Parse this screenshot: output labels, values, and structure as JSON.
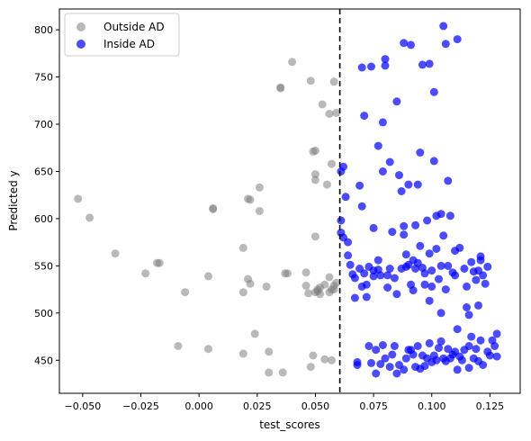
{
  "chart_data": {
    "type": "scatter",
    "xlabel": "test_scores",
    "ylabel": "Predicted y",
    "xlim": [
      -0.06,
      0.138
    ],
    "ylim": [
      415,
      822
    ],
    "xticks": [
      -0.05,
      -0.025,
      0.0,
      0.025,
      0.05,
      0.075,
      0.1,
      0.125
    ],
    "xtick_labels": [
      "−0.050",
      "−0.025",
      "0.000",
      "0.025",
      "0.050",
      "0.075",
      "0.100",
      "0.125"
    ],
    "yticks": [
      450,
      500,
      550,
      600,
      650,
      700,
      750,
      800
    ],
    "ytick_labels": [
      "450",
      "500",
      "550",
      "600",
      "650",
      "700",
      "750",
      "800"
    ],
    "threshold_line": {
      "x": 0.0605,
      "style": "dashed",
      "color": "#000000"
    },
    "legend": {
      "position": "top-left"
    },
    "series": [
      {
        "name": "Outside AD",
        "color": "#808080",
        "points": [
          [
            -0.052,
            621
          ],
          [
            -0.047,
            601
          ],
          [
            -0.036,
            563
          ],
          [
            -0.023,
            542
          ],
          [
            -0.018,
            553
          ],
          [
            -0.017,
            553
          ],
          [
            -0.009,
            465
          ],
          [
            -0.006,
            522
          ],
          [
            0.004,
            539
          ],
          [
            0.004,
            462
          ],
          [
            0.006,
            611
          ],
          [
            0.006,
            610
          ],
          [
            0.019,
            569
          ],
          [
            0.019,
            522
          ],
          [
            0.019,
            457
          ],
          [
            0.021,
            536
          ],
          [
            0.021,
            621
          ],
          [
            0.022,
            620
          ],
          [
            0.022,
            531
          ],
          [
            0.024,
            478
          ],
          [
            0.026,
            633
          ],
          [
            0.026,
            608
          ],
          [
            0.029,
            528
          ],
          [
            0.03,
            437
          ],
          [
            0.03,
            459
          ],
          [
            0.035,
            739
          ],
          [
            0.035,
            738
          ],
          [
            0.036,
            437
          ],
          [
            0.037,
            542
          ],
          [
            0.038,
            542
          ],
          [
            0.04,
            766
          ],
          [
            0.046,
            543
          ],
          [
            0.046,
            529
          ],
          [
            0.047,
            521
          ],
          [
            0.048,
            443
          ],
          [
            0.048,
            746
          ],
          [
            0.049,
            455
          ],
          [
            0.049,
            671
          ],
          [
            0.05,
            641
          ],
          [
            0.05,
            647
          ],
          [
            0.05,
            672
          ],
          [
            0.05,
            581
          ],
          [
            0.05,
            522
          ],
          [
            0.051,
            523
          ],
          [
            0.051,
            525
          ],
          [
            0.052,
            520
          ],
          [
            0.052,
            527
          ],
          [
            0.053,
            721
          ],
          [
            0.054,
            530
          ],
          [
            0.054,
            451
          ],
          [
            0.055,
            636
          ],
          [
            0.056,
            711
          ],
          [
            0.056,
            522
          ],
          [
            0.056,
            538
          ],
          [
            0.057,
            525
          ],
          [
            0.057,
            450
          ],
          [
            0.057,
            658
          ],
          [
            0.058,
            745
          ],
          [
            0.058,
            525
          ],
          [
            0.059,
            532
          ],
          [
            0.059,
            712
          ],
          [
            0.058,
            529
          ]
        ]
      },
      {
        "name": "Inside AD",
        "color": "#0000ff",
        "points": [
          [
            0.061,
            650
          ],
          [
            0.061,
            598
          ],
          [
            0.061,
            585
          ],
          [
            0.062,
            580
          ],
          [
            0.062,
            655
          ],
          [
            0.063,
            623
          ],
          [
            0.064,
            575
          ],
          [
            0.064,
            561
          ],
          [
            0.065,
            551
          ],
          [
            0.066,
            541
          ],
          [
            0.067,
            537
          ],
          [
            0.067,
            516
          ],
          [
            0.068,
            445
          ],
          [
            0.068,
            448
          ],
          [
            0.069,
            635
          ],
          [
            0.069,
            547
          ],
          [
            0.07,
            528
          ],
          [
            0.07,
            613
          ],
          [
            0.07,
            760
          ],
          [
            0.071,
            542
          ],
          [
            0.071,
            709
          ],
          [
            0.072,
            517
          ],
          [
            0.072,
            530
          ],
          [
            0.073,
            549
          ],
          [
            0.073,
            465
          ],
          [
            0.074,
            447
          ],
          [
            0.074,
            761
          ],
          [
            0.075,
            539
          ],
          [
            0.075,
            545
          ],
          [
            0.075,
            590
          ],
          [
            0.076,
            461
          ],
          [
            0.076,
            436
          ],
          [
            0.077,
            546
          ],
          [
            0.077,
            556
          ],
          [
            0.077,
            677
          ],
          [
            0.078,
            540
          ],
          [
            0.078,
            446
          ],
          [
            0.079,
            650
          ],
          [
            0.079,
            466
          ],
          [
            0.079,
            702
          ],
          [
            0.08,
            762
          ],
          [
            0.08,
            769
          ],
          [
            0.08,
            452
          ],
          [
            0.081,
            527
          ],
          [
            0.081,
            540
          ],
          [
            0.082,
            547
          ],
          [
            0.082,
            443
          ],
          [
            0.082,
            660
          ],
          [
            0.083,
            586
          ],
          [
            0.083,
            456
          ],
          [
            0.084,
            537
          ],
          [
            0.084,
            465
          ],
          [
            0.085,
            724
          ],
          [
            0.085,
            436
          ],
          [
            0.085,
            520
          ],
          [
            0.086,
            646
          ],
          [
            0.086,
            445
          ],
          [
            0.087,
            629
          ],
          [
            0.087,
            547
          ],
          [
            0.088,
            583
          ],
          [
            0.088,
            786
          ],
          [
            0.088,
            592
          ],
          [
            0.088,
            440
          ],
          [
            0.089,
            562
          ],
          [
            0.089,
            549
          ],
          [
            0.089,
            452
          ],
          [
            0.09,
            551
          ],
          [
            0.09,
            636
          ],
          [
            0.09,
            461
          ],
          [
            0.091,
            784
          ],
          [
            0.091,
            461
          ],
          [
            0.091,
            530
          ],
          [
            0.092,
            556
          ],
          [
            0.092,
            524
          ],
          [
            0.092,
            456
          ],
          [
            0.093,
            593
          ],
          [
            0.093,
            547
          ],
          [
            0.093,
            443
          ],
          [
            0.094,
            636
          ],
          [
            0.094,
            553
          ],
          [
            0.094,
            465
          ],
          [
            0.095,
            571
          ],
          [
            0.095,
            441
          ],
          [
            0.095,
            670
          ],
          [
            0.096,
            763
          ],
          [
            0.096,
            548
          ],
          [
            0.096,
            455
          ],
          [
            0.097,
            542
          ],
          [
            0.097,
            530
          ],
          [
            0.097,
            444
          ],
          [
            0.098,
            598
          ],
          [
            0.098,
            452
          ],
          [
            0.099,
            513
          ],
          [
            0.099,
            563
          ],
          [
            0.099,
            764
          ],
          [
            0.099,
            468
          ],
          [
            0.1,
            448
          ],
          [
            0.1,
            545
          ],
          [
            0.1,
            528
          ],
          [
            0.101,
            734
          ],
          [
            0.101,
            455
          ],
          [
            0.101,
            661
          ],
          [
            0.102,
            568
          ],
          [
            0.102,
            603
          ],
          [
            0.102,
            450
          ],
          [
            0.103,
            536
          ],
          [
            0.103,
            463
          ],
          [
            0.104,
            470
          ],
          [
            0.104,
            550
          ],
          [
            0.104,
            500
          ],
          [
            0.104,
            605
          ],
          [
            0.105,
            804
          ],
          [
            0.105,
            582
          ],
          [
            0.105,
            452
          ],
          [
            0.106,
            785
          ],
          [
            0.106,
            449
          ],
          [
            0.106,
            525
          ],
          [
            0.107,
            640
          ],
          [
            0.107,
            550
          ],
          [
            0.107,
            462
          ],
          [
            0.108,
            603
          ],
          [
            0.108,
            452
          ],
          [
            0.109,
            543
          ],
          [
            0.109,
            456
          ],
          [
            0.11,
            540
          ],
          [
            0.11,
            459
          ],
          [
            0.11,
            566
          ],
          [
            0.111,
            483
          ],
          [
            0.111,
            790
          ],
          [
            0.111,
            440
          ],
          [
            0.112,
            569
          ],
          [
            0.112,
            454
          ],
          [
            0.113,
            450
          ],
          [
            0.114,
            547
          ],
          [
            0.114,
            461
          ],
          [
            0.115,
            528
          ],
          [
            0.115,
            506
          ],
          [
            0.116,
            498
          ],
          [
            0.116,
            465
          ],
          [
            0.116,
            442
          ],
          [
            0.117,
            554
          ],
          [
            0.117,
            475
          ],
          [
            0.118,
            544
          ],
          [
            0.118,
            452
          ],
          [
            0.119,
            535
          ],
          [
            0.119,
            462
          ],
          [
            0.12,
            545
          ],
          [
            0.12,
            508
          ],
          [
            0.12,
            449
          ],
          [
            0.121,
            560
          ],
          [
            0.121,
            471
          ],
          [
            0.121,
            556
          ],
          [
            0.122,
            540
          ],
          [
            0.122,
            445
          ],
          [
            0.123,
            531
          ],
          [
            0.124,
            459
          ],
          [
            0.124,
            549
          ],
          [
            0.125,
            455
          ],
          [
            0.126,
            471
          ],
          [
            0.127,
            465
          ],
          [
            0.128,
            478
          ],
          [
            0.128,
            454
          ]
        ]
      }
    ]
  }
}
